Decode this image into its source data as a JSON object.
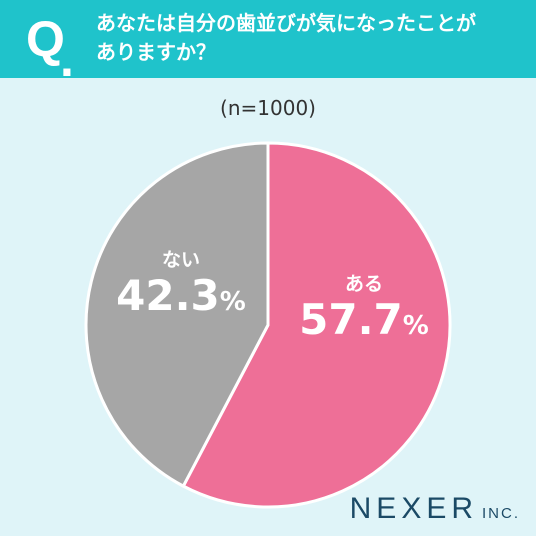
{
  "header": {
    "q_mark": "Q",
    "q_dot": ".",
    "question_line1": "あなたは自分の歯並びが気になったことが",
    "question_line2": "ありますか？"
  },
  "sample_size": "(n=1000)",
  "chart_data": {
    "type": "pie",
    "title": "あなたは自分の歯並びが気になったことがありますか？",
    "slices": [
      {
        "label": "ある",
        "value": 57.7,
        "display": "57.7",
        "unit": "%",
        "color": "#ee6f97"
      },
      {
        "label": "ない",
        "value": 42.3,
        "display": "42.3",
        "unit": "%",
        "color": "#a6a6a6"
      }
    ],
    "start": "12 o'clock",
    "direction": "clockwise"
  },
  "logo": {
    "main": "NEXER",
    "sub": "INC."
  },
  "colors": {
    "header_bg": "#1fc3cb",
    "page_bg": "#dff4f8",
    "logo": "#1b4a66"
  }
}
